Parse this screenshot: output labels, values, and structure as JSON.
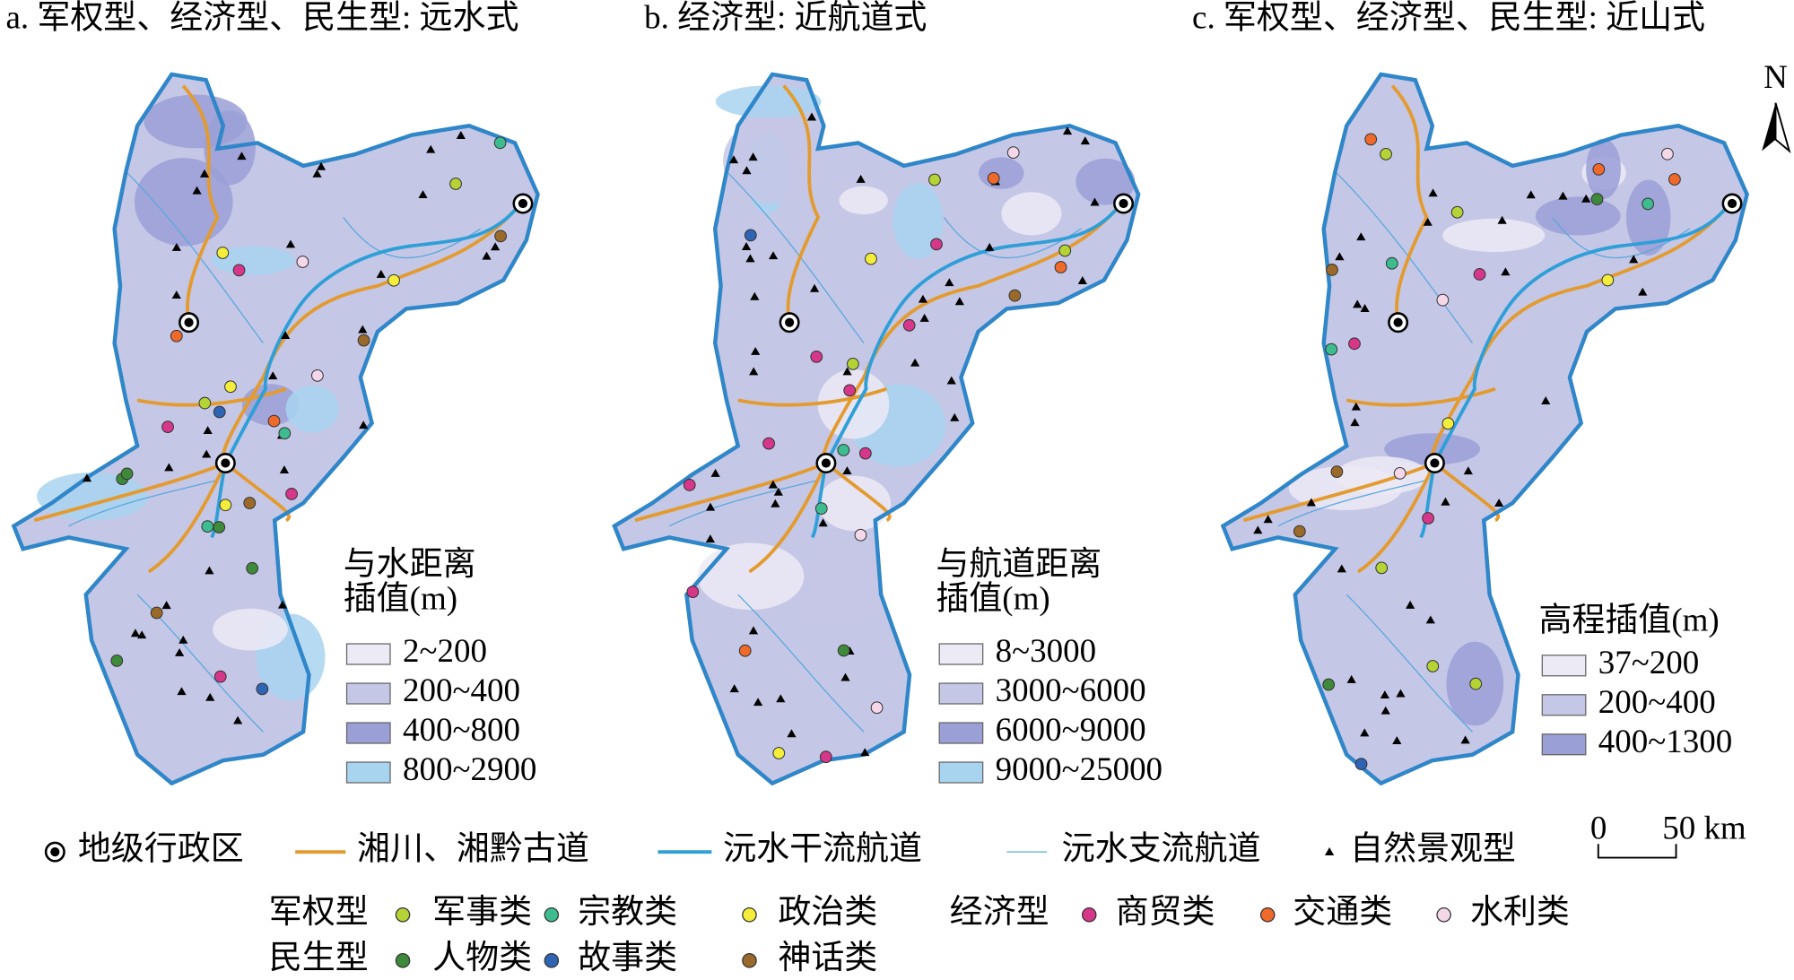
{
  "panels": [
    {
      "title": "a. 军权型、经济型、民生型: 远水式",
      "legend_title": [
        "与水距离",
        "插值(m)"
      ],
      "legend_items": [
        "2~200",
        "200~400",
        "400~800",
        "800~2900"
      ]
    },
    {
      "title": "b. 经济型: 近航道式",
      "legend_title": [
        "与航道距离",
        "插值(m)"
      ],
      "legend_items": [
        "8~3000",
        "3000~6000",
        "6000~9000",
        "9000~25000"
      ]
    },
    {
      "title": "c. 军权型、经济型、民生型: 近山式",
      "legend_title": [
        "高程插值(m)"
      ],
      "legend_items": [
        "37~200",
        "200~400",
        "400~1300"
      ]
    }
  ],
  "north": "N",
  "legend": {
    "symbols": [
      "地级行政区",
      "湘川、湘黔古道",
      "沅水干流航道",
      "沅水支流航道",
      "自然景观型"
    ],
    "scale": [
      "0",
      "50 km"
    ],
    "groups": [
      {
        "name": "军权型",
        "items": [
          "军事类",
          "宗教类",
          "政治类"
        ]
      },
      {
        "name": "经济型",
        "items": [
          "商贸类",
          "交通类",
          "水利类"
        ]
      },
      {
        "name": "民生型",
        "items": [
          "人物类",
          "故事类",
          "神话类"
        ]
      }
    ]
  }
}
